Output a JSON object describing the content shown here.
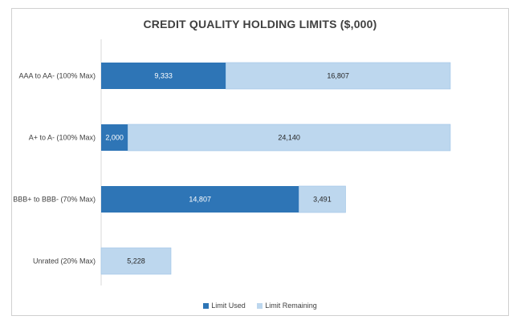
{
  "chart_data": {
    "type": "bar",
    "orientation": "horizontal",
    "stacked": true,
    "title": "CREDIT QUALITY HOLDING LIMITS ($,000)",
    "categories": [
      "AAA to AA-  (100% Max)",
      "A+ to A-  (100% Max)",
      "BBB+ to BBB- (70% Max)",
      "Unrated (20% Max)"
    ],
    "series": [
      {
        "name": "Limit Used",
        "values": [
          9333,
          2000,
          14807,
          0
        ],
        "labels": [
          "9,333",
          "2,000",
          "14,807",
          "0"
        ],
        "color": "#2e75b6"
      },
      {
        "name": "Limit Remaining",
        "values": [
          16807,
          24140,
          3491,
          5228
        ],
        "labels": [
          "16,807",
          "24,140",
          "3,491",
          "5,228"
        ],
        "color": "#bdd7ee"
      }
    ],
    "xlim": [
      0,
      26140
    ],
    "grid": false,
    "legend_position": "bottom"
  }
}
